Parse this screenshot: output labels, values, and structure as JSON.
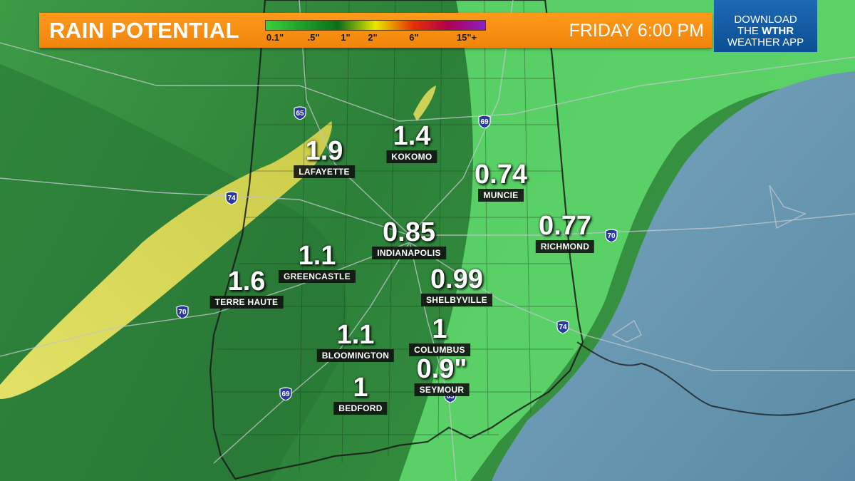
{
  "header": {
    "title": "RAIN POTENTIAL",
    "time": "FRIDAY 6:00 PM",
    "scale_labels": [
      "0.1\"",
      ".5\"",
      "1\"",
      "2\"",
      "6\"",
      "15\"+"
    ],
    "scale_colors": [
      "#3ccf3c",
      "#1e9e2a",
      "#0d6e1a",
      "#e8e800",
      "#e83000",
      "#b00050",
      "#8a20c8"
    ]
  },
  "app_promo": {
    "line1": "DOWNLOAD",
    "line2_prefix": "THE ",
    "line2_brand": "WTHR",
    "line3": "WEATHER APP"
  },
  "cities": [
    {
      "value": "1.9",
      "name": "LAFAYETTE"
    },
    {
      "value": "1.4",
      "name": "KOKOMO"
    },
    {
      "value": "0.74",
      "name": "MUNCIE"
    },
    {
      "value": "0.85",
      "name": "INDIANAPOLIS"
    },
    {
      "value": "0.77",
      "name": "RICHMOND"
    },
    {
      "value": "1.1",
      "name": "GREENCASTLE"
    },
    {
      "value": "1.6",
      "name": "TERRE HAUTE"
    },
    {
      "value": "0.99",
      "name": "SHELBYVILLE"
    },
    {
      "value": "1.1",
      "name": "BLOOMINGTON"
    },
    {
      "value": "1",
      "name": "COLUMBUS"
    },
    {
      "value": "0.9\"",
      "name": "SEYMOUR"
    },
    {
      "value": "1",
      "name": "BEDFORD"
    }
  ],
  "interstates": [
    "65",
    "69",
    "74",
    "70",
    "70",
    "74",
    "69",
    "65"
  ],
  "colors": {
    "light_rain": "#5ed86a",
    "moderate_rain": "#2f8a3e",
    "heavy_rain": "#e8e05a",
    "no_rain": "#6e98b0",
    "header_orange": "#f7900f",
    "app_blue": "#1560ab"
  }
}
